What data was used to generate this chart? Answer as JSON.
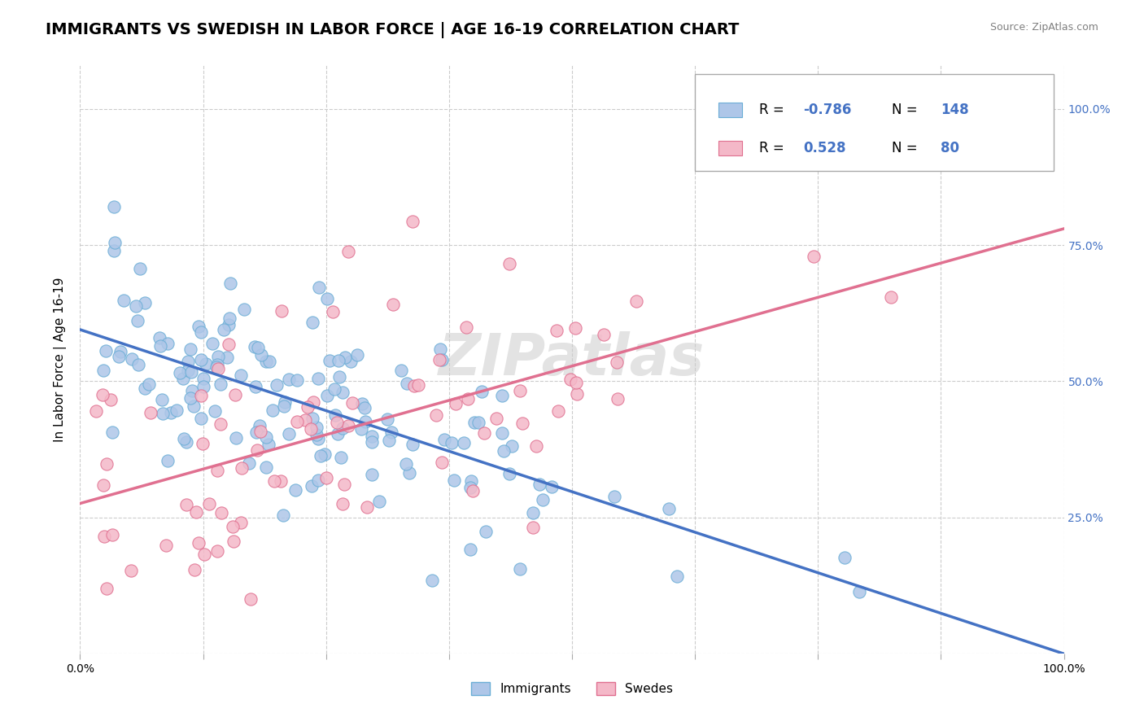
{
  "title": "IMMIGRANTS VS SWEDISH IN LABOR FORCE | AGE 16-19 CORRELATION CHART",
  "source_text": "Source: ZipAtlas.com",
  "xlabel": "",
  "ylabel": "In Labor Force | Age 16-19",
  "xlim": [
    0.0,
    1.0
  ],
  "ylim": [
    0.0,
    1.08
  ],
  "xticks": [
    0.0,
    0.125,
    0.25,
    0.375,
    0.5,
    0.625,
    0.75,
    0.875,
    1.0
  ],
  "xticklabels": [
    "0.0%",
    "",
    "",
    "",
    "",
    "",
    "",
    "",
    "100.0%"
  ],
  "ytick_positions": [
    0.0,
    0.25,
    0.5,
    0.75,
    1.0
  ],
  "ytick_labels": [
    "",
    "25.0%",
    "50.0%",
    "75.0%",
    "100.0%"
  ],
  "grid_color": "#cccccc",
  "background_color": "#ffffff",
  "immigrants_color": "#aec6e8",
  "immigrants_edge_color": "#6baed6",
  "swedes_color": "#f4b8c8",
  "swedes_edge_color": "#e07090",
  "immigrants_line_color": "#4472c4",
  "swedes_line_color": "#e07090",
  "legend_R_immigrants": "-0.786",
  "legend_N_immigrants": "148",
  "legend_R_swedes": "0.528",
  "legend_N_swedes": "80",
  "watermark": "ZIPatlas",
  "watermark_color": "#cccccc",
  "title_fontsize": 14,
  "axis_label_fontsize": 11,
  "tick_fontsize": 10,
  "legend_fontsize": 12,
  "immigrants_seed": 42,
  "swedes_seed": 7,
  "immigrants_N": 148,
  "swedes_N": 80,
  "immigrants_R": -0.786,
  "swedes_R": 0.528
}
